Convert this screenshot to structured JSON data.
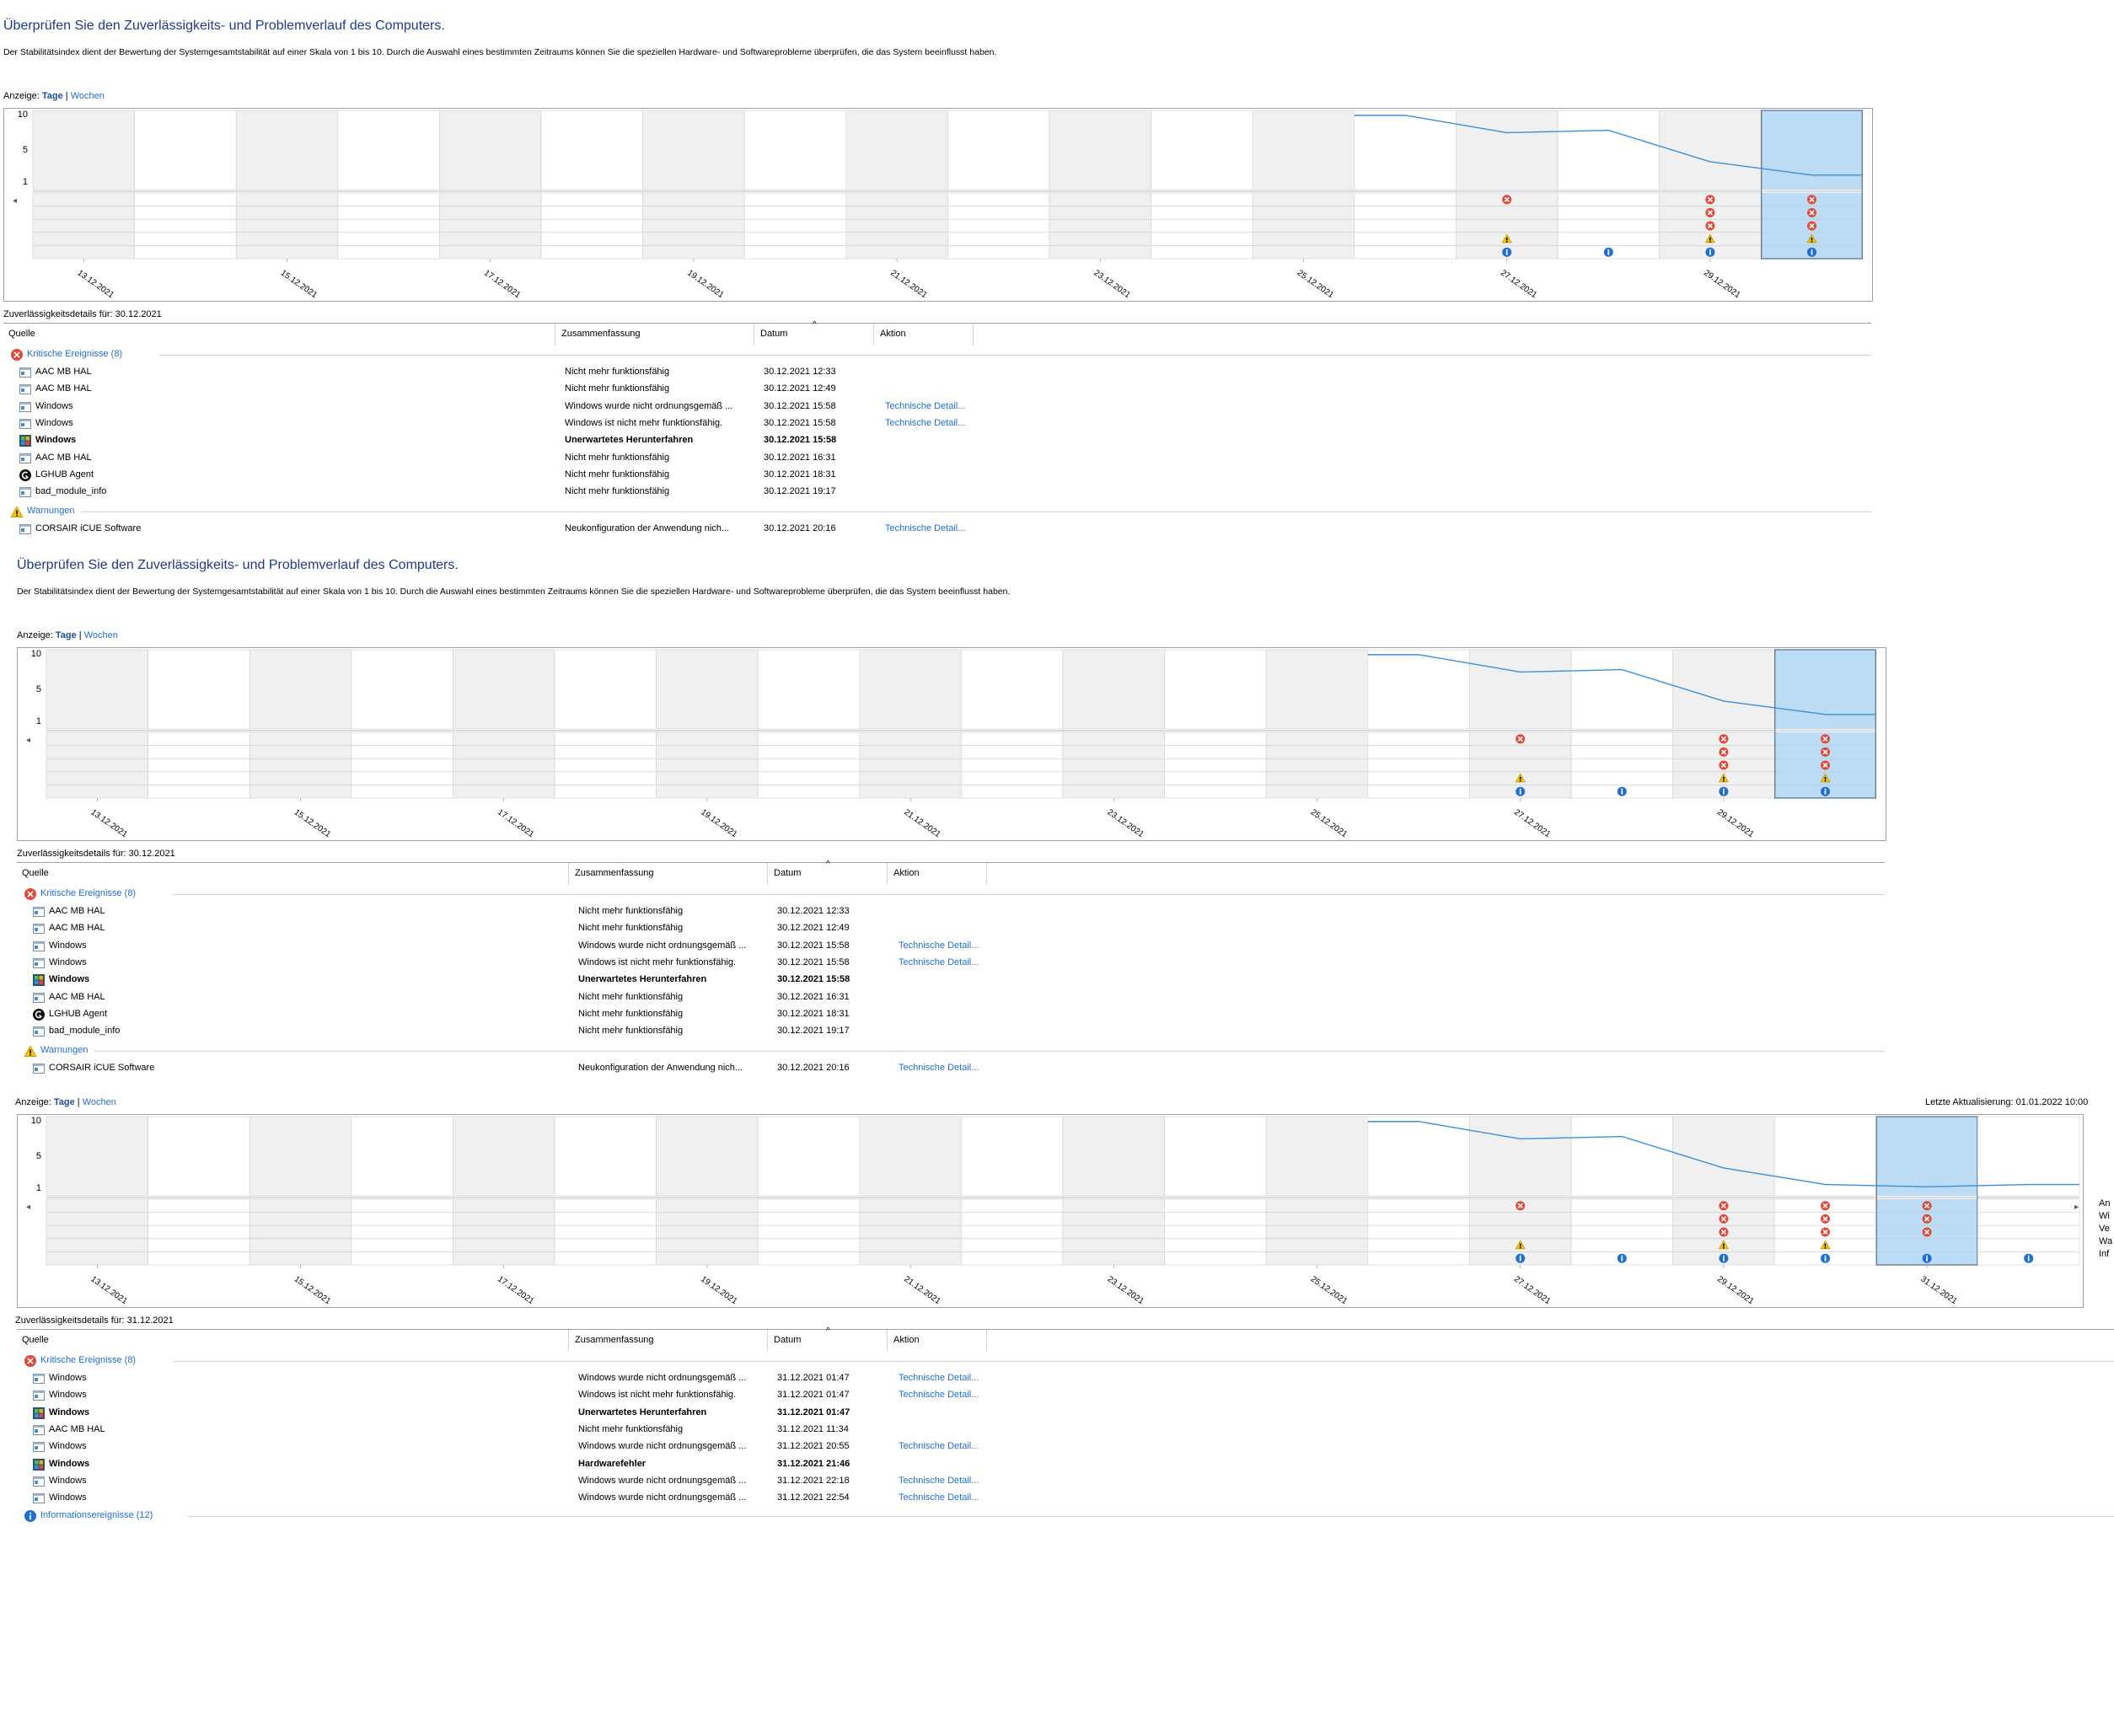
{
  "panel1": {
    "title": "Überprüfen Sie den Zuverlässigkeits- und Problemverlauf des Computers.",
    "description": "Der Stabilitätsindex dient der Bewertung der Systemgesamtstabilität auf einer Skala von 1 bis 10. Durch die Auswahl eines bestimmten Zeitraums können Sie die speziellen Hardware- und Softwareprobleme überprüfen, die das System beeinflusst haben.",
    "view_prefix": "Anzeige:",
    "view_days": "Tage",
    "view_sep": "|",
    "view_weeks": "Wochen",
    "detail_label": "Zuverlässigkeitsdetails für: 30.12.2021"
  },
  "panel2": {
    "title": "Überprüfen Sie den Zuverlässigkeits- und Problemverlauf des Computers.",
    "description": "Der Stabilitätsindex dient der Bewertung der Systemgesamtstabilität auf einer Skala von 1 bis 10. Durch die Auswahl eines bestimmten Zeitraums können Sie die speziellen Hardware- und Softwareprobleme überprüfen, die das System beeinflusst haben.",
    "view_prefix": "Anzeige:",
    "view_days": "Tage",
    "view_sep": "|",
    "view_weeks": "Wochen",
    "detail_label": "Zuverlässigkeitsdetails für: 30.12.2021"
  },
  "panel3": {
    "view_prefix": "Anzeige:",
    "view_days": "Tage",
    "view_sep": "|",
    "view_weeks": "Wochen",
    "last_update": "Letzte Aktualisierung: 01.01.2022 10:00",
    "detail_label": "Zuverlässigkeitsdetails für: 31.12.2021",
    "right_rows": [
      "An",
      "Wi",
      "Ve",
      "Wa",
      "Inf"
    ]
  },
  "chart_common": {
    "y_ticks": [
      "10",
      "5",
      "1"
    ],
    "x_labels": [
      "13.12.2021",
      "15.12.2021",
      "17.12.2021",
      "19.12.2021",
      "21.12.2021",
      "23.12.2021",
      "25.12.2021",
      "27.12.2021",
      "29.12.2021"
    ],
    "x_labels_3": [
      "13.12.2021",
      "15.12.2021",
      "17.12.2021",
      "19.12.2021",
      "21.12.2021",
      "23.12.2021",
      "25.12.2021",
      "27.12.2021",
      "29.12.2021",
      "31.12.2021"
    ]
  },
  "chart_data": [
    {
      "type": "line",
      "title": "",
      "xlabel": "",
      "ylabel": "",
      "ylim": [
        1,
        10
      ],
      "x": [
        "26.12.2021",
        "27.12.2021",
        "28.12.2021",
        "29.12.2021",
        "30.12.2021"
      ],
      "series": [
        {
          "values": [
            9.8,
            7.6,
            7.9,
            3.9,
            2.2
          ]
        }
      ],
      "events": {
        "27.12.2021": [
          "critical",
          "warning",
          "info"
        ],
        "28.12.2021": [
          "info"
        ],
        "29.12.2021": [
          "critical",
          "critical",
          "critical",
          "warning",
          "info"
        ],
        "30.12.2021": [
          "critical",
          "critical",
          "critical",
          "warning",
          "info"
        ]
      },
      "selected": "30.12.2021"
    },
    {
      "type": "line",
      "title": "",
      "xlabel": "",
      "ylabel": "",
      "ylim": [
        1,
        10
      ],
      "x": [
        "26.12.2021",
        "27.12.2021",
        "28.12.2021",
        "29.12.2021",
        "30.12.2021"
      ],
      "series": [
        {
          "values": [
            9.8,
            7.6,
            7.9,
            3.9,
            2.2
          ]
        }
      ],
      "events": {
        "27.12.2021": [
          "critical",
          "warning",
          "info"
        ],
        "28.12.2021": [
          "info"
        ],
        "29.12.2021": [
          "critical",
          "critical",
          "critical",
          "warning",
          "info"
        ],
        "30.12.2021": [
          "critical",
          "critical",
          "critical",
          "warning",
          "info"
        ]
      },
      "selected": "30.12.2021"
    },
    {
      "type": "line",
      "title": "",
      "xlabel": "",
      "ylabel": "",
      "ylim": [
        1,
        10
      ],
      "x": [
        "26.12.2021",
        "27.12.2021",
        "28.12.2021",
        "29.12.2021",
        "30.12.2021",
        "31.12.2021",
        "01.01.2022"
      ],
      "series": [
        {
          "values": [
            9.8,
            7.6,
            7.9,
            3.9,
            1.8,
            1.5,
            1.8
          ]
        }
      ],
      "events": {
        "27.12.2021": [
          "critical",
          "warning",
          "info"
        ],
        "28.12.2021": [
          "info"
        ],
        "29.12.2021": [
          "critical",
          "critical",
          "critical",
          "warning",
          "info"
        ],
        "30.12.2021": [
          "critical",
          "critical",
          "critical",
          "warning",
          "info"
        ],
        "31.12.2021": [
          "critical",
          "critical",
          "critical",
          "info"
        ],
        "01.01.2022": [
          "info"
        ]
      },
      "selected": "31.12.2021"
    }
  ],
  "table_headers": {
    "source": "Quelle",
    "summary": "Zusammenfassung",
    "date": "Datum",
    "action": "Aktion"
  },
  "table1": {
    "group_critical": "Kritische Ereignisse (8)",
    "group_warnings": "Warnungen",
    "rows": [
      {
        "source": "AAC MB HAL",
        "summary": "Nicht mehr funktionsfähig",
        "date": "30.12.2021 12:33",
        "action": "",
        "bold": false,
        "icon": "app-icon"
      },
      {
        "source": "AAC MB HAL",
        "summary": "Nicht mehr funktionsfähig",
        "date": "30.12.2021 12:49",
        "action": "",
        "bold": false,
        "icon": "app-icon"
      },
      {
        "source": "Windows",
        "summary": "Windows wurde nicht ordnungsgemäß ...",
        "date": "30.12.2021 15:58",
        "action": "Technische Detail...",
        "bold": false,
        "icon": "app-icon"
      },
      {
        "source": "Windows",
        "summary": "Windows ist nicht mehr funktionsfähig.",
        "date": "30.12.2021 15:58",
        "action": "Technische Detail...",
        "bold": false,
        "icon": "app-icon"
      },
      {
        "source": "Windows",
        "summary": "Unerwartetes Herunterfahren",
        "date": "30.12.2021 15:58",
        "action": "",
        "bold": true,
        "icon": "windows-icon"
      },
      {
        "source": "AAC MB HAL",
        "summary": "Nicht mehr funktionsfähig",
        "date": "30.12.2021 16:31",
        "action": "",
        "bold": false,
        "icon": "app-icon"
      },
      {
        "source": "LGHUB Agent",
        "summary": "Nicht mehr funktionsfähig",
        "date": "30.12.2021 18:31",
        "action": "",
        "bold": false,
        "icon": "lghub-icon"
      },
      {
        "source": "bad_module_info",
        "summary": "Nicht mehr funktionsfähig",
        "date": "30.12.2021 19:17",
        "action": "",
        "bold": false,
        "icon": "app-icon"
      }
    ],
    "warning_rows": [
      {
        "source": "CORSAIR iCUE Software",
        "summary": "Neukonfiguration der Anwendung nich...",
        "date": "30.12.2021 20:16",
        "action": "Technische Detail..."
      }
    ]
  },
  "table3": {
    "group_critical": "Kritische Ereignisse (8)",
    "group_info": "Informationsereignisse (12)",
    "rows": [
      {
        "source": "Windows",
        "summary": "Windows wurde nicht ordnungsgemäß ...",
        "date": "31.12.2021 01:47",
        "action": "Technische Detail...",
        "bold": false,
        "icon": "app-icon"
      },
      {
        "source": "Windows",
        "summary": "Windows ist nicht mehr funktionsfähig.",
        "date": "31.12.2021 01:47",
        "action": "Technische Detail...",
        "bold": false,
        "icon": "app-icon"
      },
      {
        "source": "Windows",
        "summary": "Unerwartetes Herunterfahren",
        "date": "31.12.2021 01:47",
        "action": "",
        "bold": true,
        "icon": "windows-icon"
      },
      {
        "source": "AAC MB HAL",
        "summary": "Nicht mehr funktionsfähig",
        "date": "31.12.2021 11:34",
        "action": "",
        "bold": false,
        "icon": "app-icon"
      },
      {
        "source": "Windows",
        "summary": "Windows wurde nicht ordnungsgemäß ...",
        "date": "31.12.2021 20:55",
        "action": "Technische Detail...",
        "bold": false,
        "icon": "app-icon"
      },
      {
        "source": "Windows",
        "summary": "Hardwarefehler",
        "date": "31.12.2021 21:46",
        "action": "",
        "bold": true,
        "icon": "windows-icon"
      },
      {
        "source": "Windows",
        "summary": "Windows wurde nicht ordnungsgemäß ...",
        "date": "31.12.2021 22:18",
        "action": "Technische Detail...",
        "bold": false,
        "icon": "app-icon"
      },
      {
        "source": "Windows",
        "summary": "Windows wurde nicht ordnungsgemäß ...",
        "date": "31.12.2021 22:54",
        "action": "Technische Detail...",
        "bold": false,
        "icon": "app-icon"
      }
    ]
  },
  "colors": {
    "critical": "#e04a3a",
    "warning": "#f5c400",
    "info": "#1f6fd0",
    "line": "#3b8fd9",
    "selected_fill": "#bcdcf5",
    "shade": "#f0f0f0",
    "link": "#1f6fd0",
    "title": "#1e3a8a"
  }
}
